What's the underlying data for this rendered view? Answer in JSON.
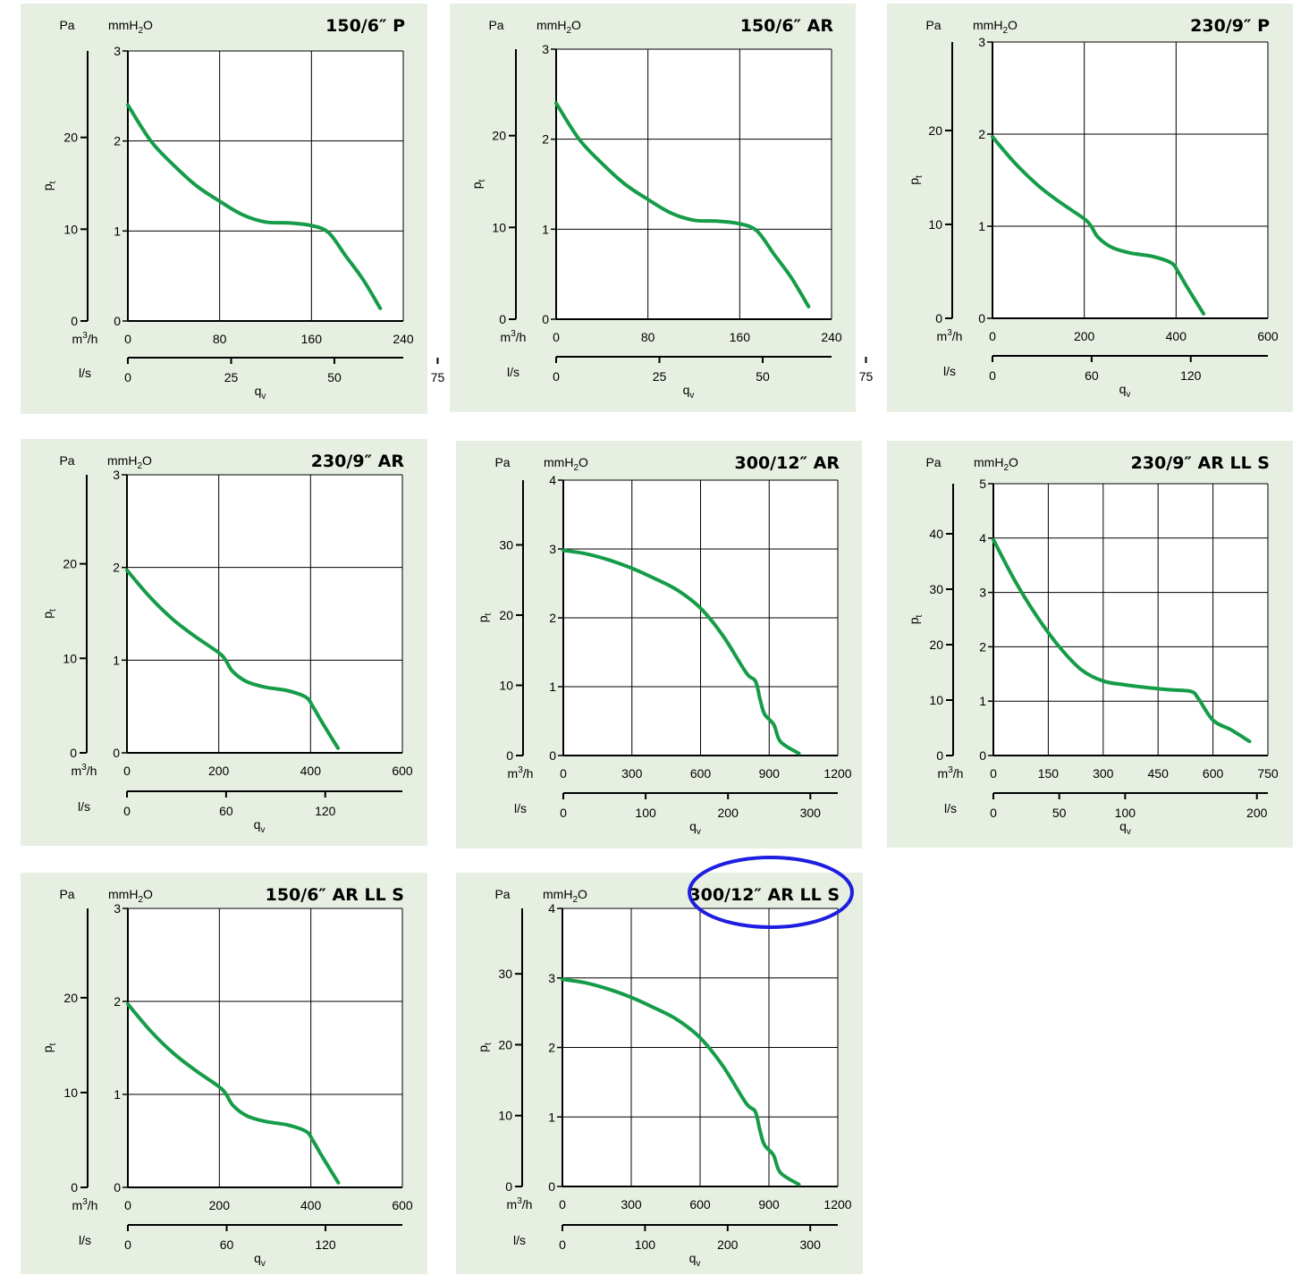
{
  "units": {
    "pa": "Pa",
    "mm_prefix": "mmH",
    "mm_sub": "2",
    "mm_suffix": "O",
    "m3h_prefix": "m",
    "m3h_sup": "3",
    "m3h_suffix": "/h",
    "ls": "l/s",
    "pt_main": "p",
    "pt_sub": "t",
    "qv_main": "q",
    "qv_sub": "v"
  },
  "colors": {
    "panel_bg": "#e6efe1",
    "curve": "#159c48",
    "grid": "#000000",
    "highlight": "#1e1ee0"
  },
  "chart_data": [
    {
      "type": "line",
      "title": "150/6″ P",
      "xlim": [
        0,
        240
      ],
      "x_ticks": [
        0,
        80,
        160,
        240
      ],
      "ylim": [
        0,
        3
      ],
      "y_ticks": [
        0,
        1,
        2,
        3
      ],
      "pa_ticks": [
        0,
        10,
        20
      ],
      "ls_ticks": [
        0,
        25,
        50,
        75
      ],
      "series": [
        {
          "x": [
            0,
            20,
            40,
            60,
            80,
            100,
            120,
            140,
            160,
            175,
            190,
            205,
            220
          ],
          "y": [
            2.4,
            2.0,
            1.73,
            1.5,
            1.33,
            1.18,
            1.1,
            1.09,
            1.06,
            0.98,
            0.72,
            0.46,
            0.14
          ]
        }
      ]
    },
    {
      "type": "line",
      "title": "150/6″ AR",
      "xlim": [
        0,
        240
      ],
      "x_ticks": [
        0,
        80,
        160,
        240
      ],
      "ylim": [
        0,
        3
      ],
      "y_ticks": [
        0,
        1,
        2,
        3
      ],
      "pa_ticks": [
        0,
        10,
        20
      ],
      "ls_ticks": [
        0,
        25,
        50,
        75
      ],
      "series": [
        {
          "x": [
            0,
            20,
            40,
            60,
            80,
            100,
            120,
            140,
            160,
            175,
            190,
            205,
            220
          ],
          "y": [
            2.4,
            2.0,
            1.73,
            1.5,
            1.33,
            1.18,
            1.1,
            1.09,
            1.06,
            0.98,
            0.72,
            0.46,
            0.14
          ]
        }
      ]
    },
    {
      "type": "line",
      "title": "230/9″ P",
      "xlim": [
        0,
        600
      ],
      "x_ticks": [
        0,
        200,
        400,
        600
      ],
      "ylim": [
        0,
        3
      ],
      "y_ticks": [
        0,
        1,
        2,
        3
      ],
      "pa_ticks": [
        0,
        10,
        20
      ],
      "ls_ticks": [
        0,
        60,
        120
      ],
      "series": [
        {
          "x": [
            0,
            50,
            100,
            150,
            200,
            215,
            230,
            260,
            300,
            350,
            390,
            405,
            425,
            460
          ],
          "y": [
            1.97,
            1.68,
            1.44,
            1.25,
            1.08,
            1.0,
            0.88,
            0.77,
            0.71,
            0.67,
            0.6,
            0.5,
            0.33,
            0.05
          ]
        }
      ]
    },
    {
      "type": "line",
      "title": "230/9″ AR",
      "xlim": [
        0,
        600
      ],
      "x_ticks": [
        0,
        200,
        400,
        600
      ],
      "ylim": [
        0,
        3
      ],
      "y_ticks": [
        0,
        1,
        2,
        3
      ],
      "pa_ticks": [
        0,
        10,
        20
      ],
      "ls_ticks": [
        0,
        60,
        120
      ],
      "series": [
        {
          "x": [
            0,
            50,
            100,
            150,
            200,
            215,
            230,
            260,
            300,
            350,
            390,
            405,
            425,
            460
          ],
          "y": [
            1.97,
            1.68,
            1.44,
            1.25,
            1.08,
            1.0,
            0.88,
            0.77,
            0.71,
            0.67,
            0.6,
            0.5,
            0.33,
            0.05
          ]
        }
      ]
    },
    {
      "type": "line",
      "title": "300/12″ AR",
      "xlim": [
        0,
        1200
      ],
      "x_ticks": [
        0,
        300,
        600,
        900,
        1200
      ],
      "ylim": [
        0,
        4
      ],
      "y_ticks": [
        0,
        1,
        2,
        3,
        4
      ],
      "pa_ticks": [
        0,
        10,
        20,
        30
      ],
      "ls_ticks": [
        0,
        100,
        200,
        300
      ],
      "series": [
        {
          "x": [
            0,
            100,
            200,
            300,
            400,
            500,
            600,
            700,
            800,
            840,
            860,
            880,
            920,
            950,
            1030
          ],
          "y": [
            2.98,
            2.93,
            2.84,
            2.72,
            2.57,
            2.4,
            2.14,
            1.73,
            1.2,
            1.08,
            0.82,
            0.6,
            0.45,
            0.2,
            0.03
          ]
        }
      ]
    },
    {
      "type": "line",
      "title": "230/9″ AR LL S",
      "xlim": [
        0,
        750
      ],
      "x_ticks": [
        0,
        150,
        300,
        450,
        600,
        750
      ],
      "ylim": [
        0,
        5
      ],
      "y_ticks": [
        0,
        1,
        2,
        3,
        4,
        5
      ],
      "pa_ticks": [
        0,
        10,
        20,
        30,
        40
      ],
      "ls_ticks": [
        0,
        50,
        100,
        200
      ],
      "series": [
        {
          "x": [
            0,
            60,
            120,
            180,
            240,
            300,
            360,
            420,
            480,
            540,
            560,
            600,
            650,
            700
          ],
          "y": [
            3.97,
            3.2,
            2.55,
            2.0,
            1.58,
            1.37,
            1.3,
            1.25,
            1.21,
            1.18,
            1.05,
            0.65,
            0.47,
            0.26
          ]
        }
      ]
    },
    {
      "type": "line",
      "title": "150/6″ AR LL S",
      "xlim": [
        0,
        600
      ],
      "x_ticks": [
        0,
        200,
        400,
        600
      ],
      "ylim": [
        0,
        3
      ],
      "y_ticks": [
        0,
        1,
        2,
        3
      ],
      "pa_ticks": [
        0,
        10,
        20
      ],
      "ls_ticks": [
        0,
        60,
        120
      ],
      "series": [
        {
          "x": [
            0,
            50,
            100,
            150,
            200,
            215,
            230,
            260,
            300,
            350,
            390,
            405,
            425,
            460
          ],
          "y": [
            1.97,
            1.68,
            1.44,
            1.25,
            1.08,
            1.0,
            0.88,
            0.77,
            0.71,
            0.67,
            0.6,
            0.5,
            0.33,
            0.05
          ]
        }
      ]
    },
    {
      "type": "line",
      "title": "300/12″ AR LL S",
      "highlighted": true,
      "xlim": [
        0,
        1200
      ],
      "x_ticks": [
        0,
        300,
        600,
        900,
        1200
      ],
      "ylim": [
        0,
        4
      ],
      "y_ticks": [
        0,
        1,
        2,
        3,
        4
      ],
      "pa_ticks": [
        0,
        10,
        20,
        30
      ],
      "ls_ticks": [
        0,
        100,
        200,
        300
      ],
      "series": [
        {
          "x": [
            0,
            100,
            200,
            300,
            400,
            500,
            600,
            700,
            800,
            840,
            860,
            880,
            920,
            950,
            1030
          ],
          "y": [
            2.98,
            2.93,
            2.84,
            2.72,
            2.57,
            2.4,
            2.14,
            1.73,
            1.2,
            1.08,
            0.82,
            0.6,
            0.45,
            0.2,
            0.03
          ]
        }
      ]
    }
  ]
}
